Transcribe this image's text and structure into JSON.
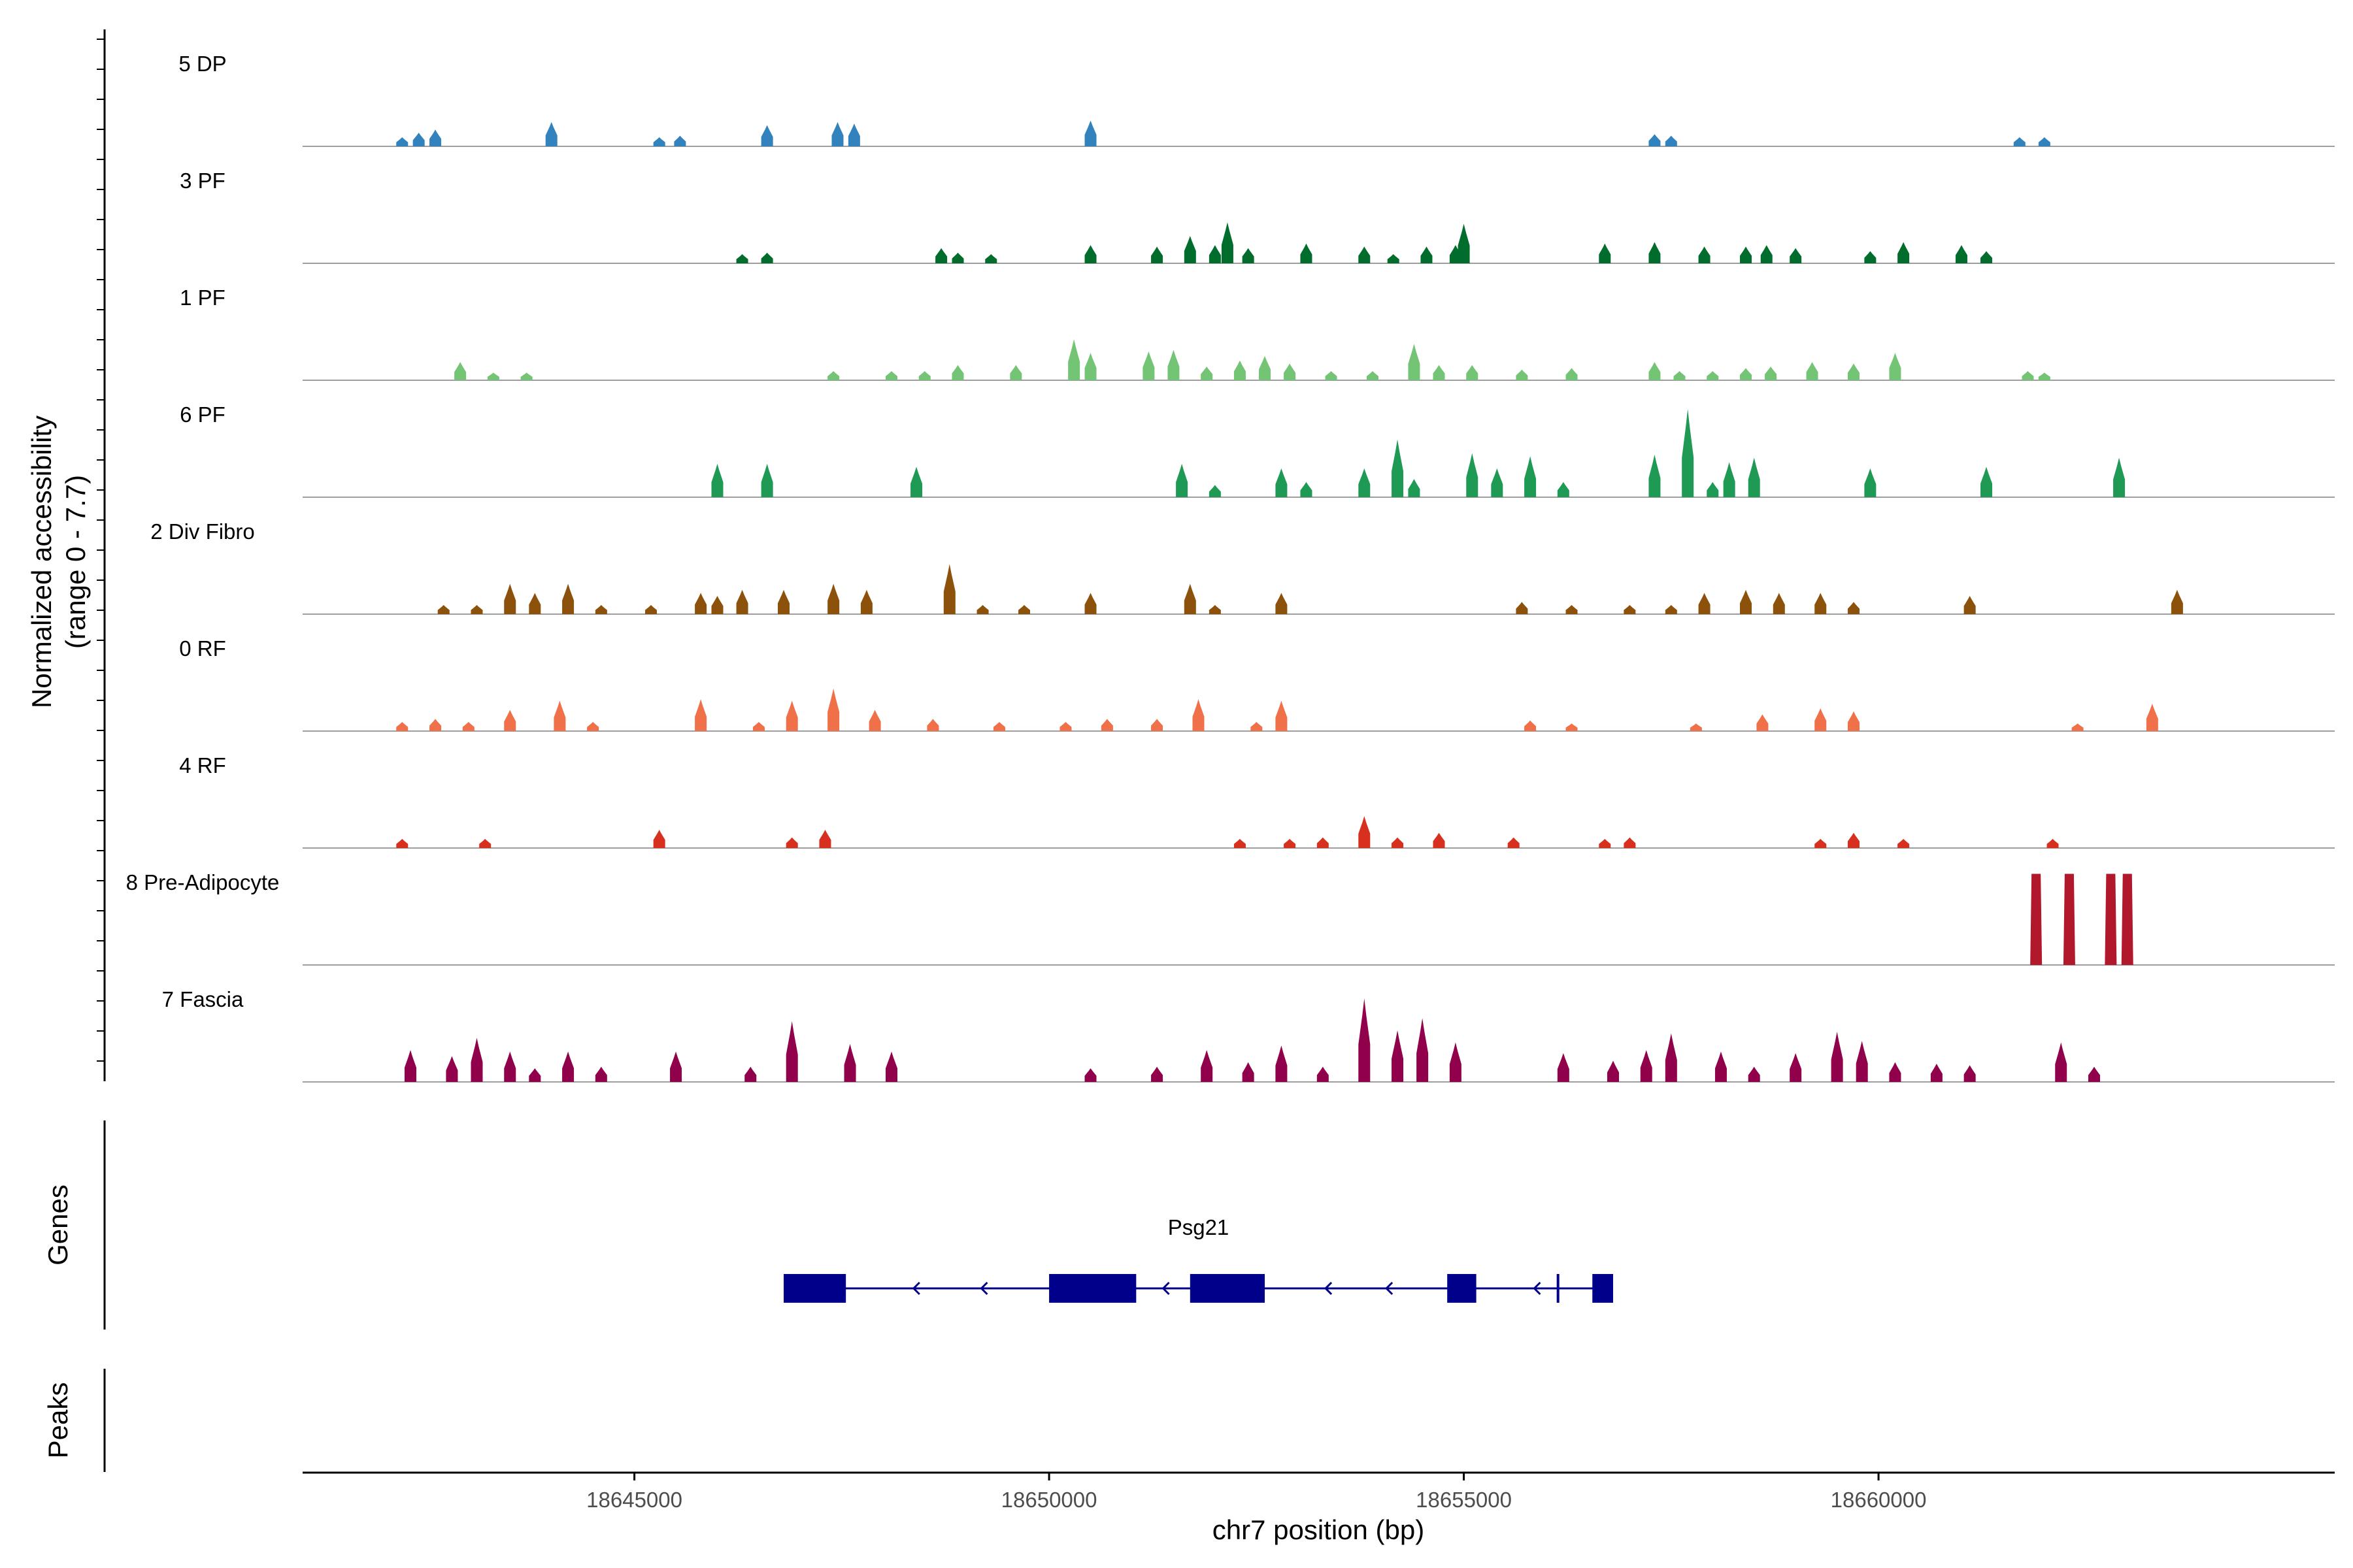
{
  "chart_data": {
    "type": "area",
    "title": "",
    "ylabel": "Normalized accessibility",
    "ylabel_range": "(range 0 - 7.7)",
    "y_range": [
      0,
      7.7
    ],
    "xlabel": "chr7 position (bp)",
    "xlim": [
      18641000,
      18665500
    ],
    "x_ticks": [
      18645000,
      18650000,
      18655000,
      18660000
    ],
    "x_tick_labels": [
      "18645000",
      "18650000",
      "18655000",
      "18660000"
    ],
    "panel_titles": {
      "genes": "Genes",
      "peaks": "Peaks"
    },
    "series": [
      {
        "name": "5 DP",
        "color": "#3182bd",
        "peaks": [
          [
            18642200,
            0.6
          ],
          [
            18642400,
            0.9
          ],
          [
            18642600,
            1.1
          ],
          [
            18644000,
            1.6
          ],
          [
            18645300,
            0.6
          ],
          [
            18645550,
            0.7
          ],
          [
            18646600,
            1.4
          ],
          [
            18647450,
            1.6
          ],
          [
            18647650,
            1.5
          ],
          [
            18650500,
            1.7
          ],
          [
            18657300,
            0.8
          ],
          [
            18657500,
            0.7
          ],
          [
            18661700,
            0.6
          ],
          [
            18662000,
            0.6
          ]
        ]
      },
      {
        "name": "3 PF",
        "color": "#006d2c",
        "peaks": [
          [
            18646300,
            0.6
          ],
          [
            18646600,
            0.7
          ],
          [
            18648700,
            1.0
          ],
          [
            18648900,
            0.7
          ],
          [
            18649300,
            0.6
          ],
          [
            18650500,
            1.2
          ],
          [
            18651300,
            1.1
          ],
          [
            18651700,
            1.8
          ],
          [
            18652000,
            1.2
          ],
          [
            18652150,
            2.7
          ],
          [
            18652400,
            1.0
          ],
          [
            18653100,
            1.3
          ],
          [
            18653800,
            1.1
          ],
          [
            18654150,
            0.6
          ],
          [
            18654550,
            1.1
          ],
          [
            18654900,
            1.2
          ],
          [
            18655000,
            2.6
          ],
          [
            18656700,
            1.3
          ],
          [
            18657300,
            1.4
          ],
          [
            18657900,
            1.1
          ],
          [
            18658400,
            1.1
          ],
          [
            18658650,
            1.2
          ],
          [
            18659000,
            1.0
          ],
          [
            18659900,
            0.8
          ],
          [
            18660300,
            1.4
          ],
          [
            18661000,
            1.2
          ],
          [
            18661300,
            0.8
          ]
        ]
      },
      {
        "name": "1 PF",
        "color": "#74c476",
        "peaks": [
          [
            18642900,
            1.2
          ],
          [
            18643300,
            0.5
          ],
          [
            18643700,
            0.5
          ],
          [
            18647400,
            0.6
          ],
          [
            18648100,
            0.6
          ],
          [
            18648500,
            0.6
          ],
          [
            18648900,
            1.0
          ],
          [
            18649600,
            1.0
          ],
          [
            18650300,
            2.7
          ],
          [
            18650500,
            1.8
          ],
          [
            18651200,
            1.9
          ],
          [
            18651500,
            2.0
          ],
          [
            18651900,
            0.9
          ],
          [
            18652300,
            1.3
          ],
          [
            18652600,
            1.6
          ],
          [
            18652900,
            1.1
          ],
          [
            18653400,
            0.6
          ],
          [
            18653900,
            0.6
          ],
          [
            18654400,
            2.4
          ],
          [
            18654700,
            1.0
          ],
          [
            18655100,
            1.0
          ],
          [
            18655700,
            0.7
          ],
          [
            18656300,
            0.8
          ],
          [
            18657300,
            1.2
          ],
          [
            18657600,
            0.6
          ],
          [
            18658000,
            0.6
          ],
          [
            18658400,
            0.8
          ],
          [
            18658700,
            0.9
          ],
          [
            18659200,
            1.2
          ],
          [
            18659700,
            1.1
          ],
          [
            18660200,
            1.8
          ],
          [
            18661800,
            0.6
          ],
          [
            18662000,
            0.5
          ]
        ]
      },
      {
        "name": "6 PF",
        "color": "#1f9a55",
        "peaks": [
          [
            18646000,
            2.2
          ],
          [
            18646600,
            2.2
          ],
          [
            18648400,
            2.0
          ],
          [
            18651600,
            2.2
          ],
          [
            18652000,
            0.8
          ],
          [
            18652800,
            1.9
          ],
          [
            18653100,
            1.0
          ],
          [
            18653800,
            1.9
          ],
          [
            18654200,
            3.8
          ],
          [
            18654400,
            1.2
          ],
          [
            18655100,
            2.9
          ],
          [
            18655400,
            1.9
          ],
          [
            18655800,
            2.7
          ],
          [
            18656200,
            1.0
          ],
          [
            18657300,
            2.8
          ],
          [
            18657700,
            5.8
          ],
          [
            18658000,
            1.0
          ],
          [
            18658200,
            2.3
          ],
          [
            18658500,
            2.6
          ],
          [
            18659900,
            1.9
          ],
          [
            18661300,
            2.0
          ],
          [
            18662900,
            2.6
          ]
        ]
      },
      {
        "name": "2 Div Fibro",
        "color": "#8c510a",
        "peaks": [
          [
            18642700,
            0.6
          ],
          [
            18643100,
            0.6
          ],
          [
            18643500,
            2.0
          ],
          [
            18643800,
            1.4
          ],
          [
            18644200,
            2.0
          ],
          [
            18644600,
            0.6
          ],
          [
            18645200,
            0.6
          ],
          [
            18645800,
            1.4
          ],
          [
            18646000,
            1.2
          ],
          [
            18646300,
            1.6
          ],
          [
            18646800,
            1.6
          ],
          [
            18647400,
            2.0
          ],
          [
            18647800,
            1.6
          ],
          [
            18648800,
            3.3
          ],
          [
            18649200,
            0.6
          ],
          [
            18649700,
            0.6
          ],
          [
            18650500,
            1.4
          ],
          [
            18651700,
            2.0
          ],
          [
            18652000,
            0.6
          ],
          [
            18652800,
            1.4
          ],
          [
            18655700,
            0.8
          ],
          [
            18656300,
            0.6
          ],
          [
            18657000,
            0.6
          ],
          [
            18657500,
            0.6
          ],
          [
            18657900,
            1.4
          ],
          [
            18658400,
            1.6
          ],
          [
            18658800,
            1.4
          ],
          [
            18659300,
            1.4
          ],
          [
            18659700,
            0.8
          ],
          [
            18661100,
            1.2
          ],
          [
            18663600,
            1.6
          ]
        ]
      },
      {
        "name": "0 RF",
        "color": "#f0704a",
        "peaks": [
          [
            18642200,
            0.6
          ],
          [
            18642600,
            0.8
          ],
          [
            18643000,
            0.6
          ],
          [
            18643500,
            1.4
          ],
          [
            18644100,
            2.0
          ],
          [
            18644500,
            0.6
          ],
          [
            18645800,
            2.1
          ],
          [
            18646500,
            0.6
          ],
          [
            18646900,
            2.0
          ],
          [
            18647400,
            2.8
          ],
          [
            18647900,
            1.4
          ],
          [
            18648600,
            0.8
          ],
          [
            18649400,
            0.6
          ],
          [
            18650200,
            0.6
          ],
          [
            18650700,
            0.8
          ],
          [
            18651300,
            0.8
          ],
          [
            18651800,
            2.1
          ],
          [
            18652500,
            0.6
          ],
          [
            18652800,
            2.0
          ],
          [
            18655800,
            0.7
          ],
          [
            18656300,
            0.5
          ],
          [
            18657800,
            0.5
          ],
          [
            18658600,
            1.1
          ],
          [
            18659300,
            1.5
          ],
          [
            18659700,
            1.3
          ],
          [
            18662400,
            0.5
          ],
          [
            18663300,
            1.8
          ]
        ]
      },
      {
        "name": "4 RF",
        "color": "#d7301f",
        "peaks": [
          [
            18642200,
            0.6
          ],
          [
            18643200,
            0.6
          ],
          [
            18645300,
            1.2
          ],
          [
            18646900,
            0.7
          ],
          [
            18647300,
            1.2
          ],
          [
            18652300,
            0.6
          ],
          [
            18652900,
            0.6
          ],
          [
            18653300,
            0.7
          ],
          [
            18653800,
            2.1
          ],
          [
            18654200,
            0.7
          ],
          [
            18654700,
            1.0
          ],
          [
            18655600,
            0.7
          ],
          [
            18656700,
            0.6
          ],
          [
            18657000,
            0.7
          ],
          [
            18659300,
            0.6
          ],
          [
            18659700,
            1.0
          ],
          [
            18660300,
            0.6
          ],
          [
            18662100,
            0.6
          ]
        ]
      },
      {
        "name": "8 Pre-Adipocyte",
        "color": "#b2182b",
        "peaks": [
          [
            18661900,
            6.0
          ],
          [
            18662300,
            6.0
          ],
          [
            18662800,
            6.0
          ],
          [
            18663000,
            6.0
          ]
        ]
      },
      {
        "name": "7 Fascia",
        "color": "#91004b",
        "peaks": [
          [
            18642300,
            2.1
          ],
          [
            18642800,
            1.7
          ],
          [
            18643100,
            2.9
          ],
          [
            18643500,
            2.0
          ],
          [
            18643800,
            0.9
          ],
          [
            18644200,
            2.0
          ],
          [
            18644600,
            1.0
          ],
          [
            18645500,
            2.0
          ],
          [
            18646400,
            1.0
          ],
          [
            18646900,
            4.0
          ],
          [
            18647600,
            2.5
          ],
          [
            18648100,
            2.0
          ],
          [
            18650500,
            0.9
          ],
          [
            18651300,
            1.0
          ],
          [
            18651900,
            2.1
          ],
          [
            18652400,
            1.3
          ],
          [
            18652800,
            2.4
          ],
          [
            18653300,
            1.0
          ],
          [
            18653800,
            5.5
          ],
          [
            18654200,
            3.4
          ],
          [
            18654500,
            4.2
          ],
          [
            18654900,
            2.6
          ],
          [
            18656200,
            1.9
          ],
          [
            18656800,
            1.4
          ],
          [
            18657200,
            2.1
          ],
          [
            18657500,
            3.2
          ],
          [
            18658100,
            2.0
          ],
          [
            18658500,
            1.0
          ],
          [
            18659000,
            1.9
          ],
          [
            18659500,
            3.3
          ],
          [
            18659800,
            2.7
          ],
          [
            18660200,
            1.3
          ],
          [
            18660700,
            1.2
          ],
          [
            18661100,
            1.1
          ],
          [
            18662200,
            2.6
          ],
          [
            18662600,
            1.0
          ]
        ]
      }
    ],
    "genes": [
      {
        "name": "Psg21",
        "strand": "-",
        "start": 18646800,
        "end": 18656800,
        "exons": [
          [
            18646800,
            18647550
          ],
          [
            18650000,
            18651050
          ],
          [
            18651700,
            18652600
          ],
          [
            18654800,
            18655150
          ],
          [
            18656550,
            18656800
          ]
        ],
        "marks": [
          [
            18656120,
            18656150
          ]
        ]
      }
    ],
    "peaks_track": []
  }
}
